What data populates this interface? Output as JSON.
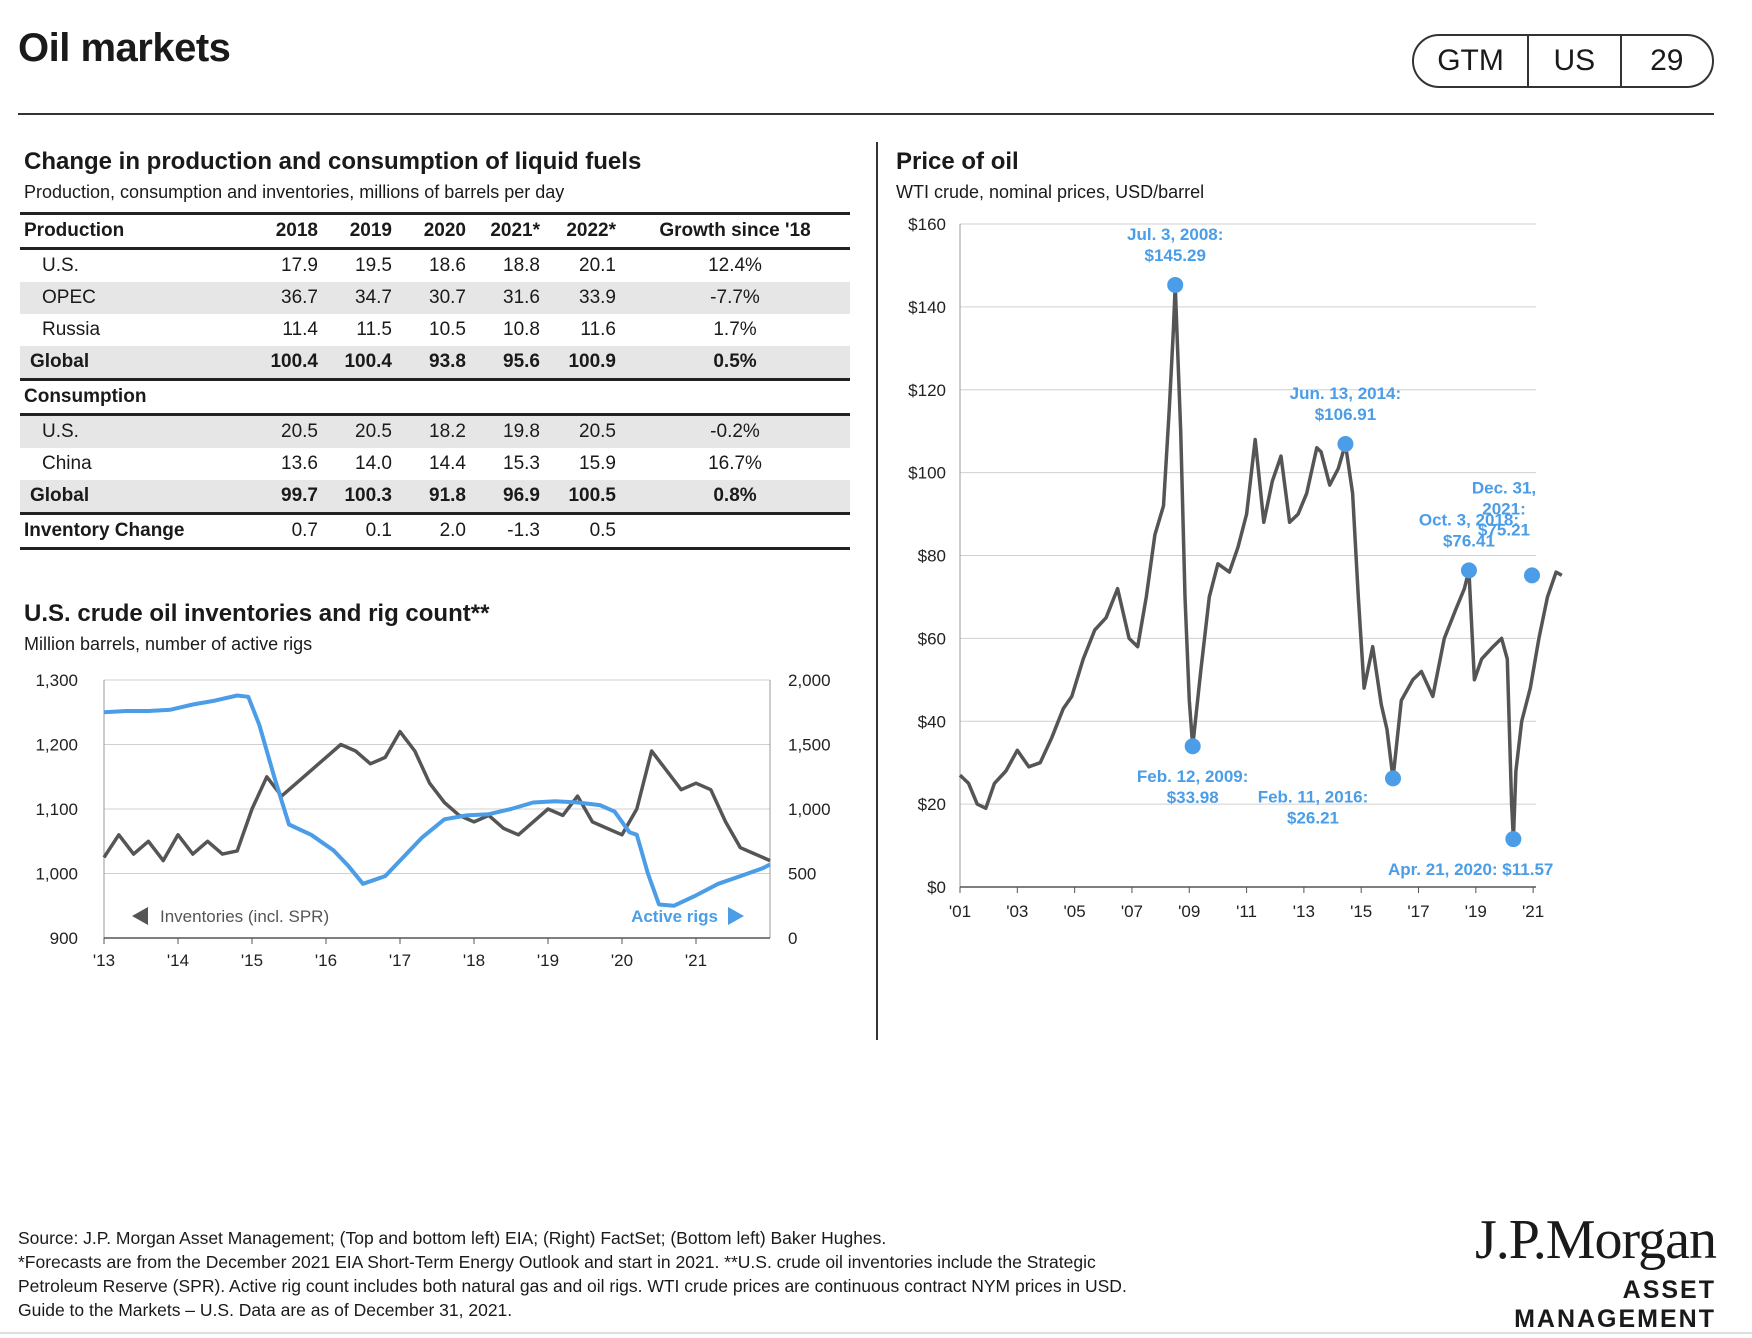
{
  "header": {
    "title": "Oil markets",
    "badge": [
      "GTM",
      "US",
      "29"
    ]
  },
  "fuel_table": {
    "title": "Change in production and consumption of liquid fuels",
    "subtitle": "Production, consumption and inventories, millions of barrels per day",
    "columns": [
      "Production",
      "2018",
      "2019",
      "2020",
      "2021*",
      "2022*",
      "Growth since '18"
    ],
    "production_rows": [
      [
        "U.S.",
        "17.9",
        "19.5",
        "18.6",
        "18.8",
        "20.1",
        "12.4%"
      ],
      [
        "OPEC",
        "36.7",
        "34.7",
        "30.7",
        "31.6",
        "33.9",
        "-7.7%"
      ],
      [
        "Russia",
        "11.4",
        "11.5",
        "10.5",
        "10.8",
        "11.6",
        "1.7%"
      ]
    ],
    "production_total": [
      "Global",
      "100.4",
      "100.4",
      "93.8",
      "95.6",
      "100.9",
      "0.5%"
    ],
    "consumption_label": "Consumption",
    "consumption_rows": [
      [
        "U.S.",
        "20.5",
        "20.5",
        "18.2",
        "19.8",
        "20.5",
        "-0.2%"
      ],
      [
        "China",
        "13.6",
        "14.0",
        "14.4",
        "15.3",
        "15.9",
        "16.7%"
      ]
    ],
    "consumption_total": [
      "Global",
      "99.7",
      "100.3",
      "91.8",
      "96.9",
      "100.5",
      "0.8%"
    ],
    "inventory_row": [
      "Inventory Change",
      "0.7",
      "0.1",
      "2.0",
      "-1.3",
      "0.5",
      ""
    ]
  },
  "chart_data": [
    {
      "type": "line",
      "title": "U.S. crude oil inventories and rig count**",
      "subtitle": "Million barrels, number of active rigs",
      "x_ticks": [
        "'13",
        "'14",
        "'15",
        "'16",
        "'17",
        "'18",
        "'19",
        "'20",
        "'21"
      ],
      "xlim": [
        2013.0,
        2022.0
      ],
      "y_left_ticks": [
        "900",
        "1,000",
        "1,100",
        "1,200",
        "1,300"
      ],
      "ylim_left": [
        900,
        1300
      ],
      "y_right_ticks": [
        "0",
        "500",
        "1,000",
        "1,500",
        "2,000"
      ],
      "ylim_right": [
        0,
        2000
      ],
      "legend": {
        "left": "Inventories (incl. SPR)",
        "right": "Active rigs"
      },
      "series": [
        {
          "name": "Inventories (incl. SPR)",
          "axis": "left",
          "color": "#555555",
          "x": [
            2013.0,
            2013.2,
            2013.4,
            2013.6,
            2013.8,
            2014.0,
            2014.2,
            2014.4,
            2014.6,
            2014.8,
            2015.0,
            2015.2,
            2015.4,
            2015.6,
            2015.8,
            2016.0,
            2016.2,
            2016.4,
            2016.6,
            2016.8,
            2017.0,
            2017.2,
            2017.4,
            2017.6,
            2017.8,
            2018.0,
            2018.2,
            2018.4,
            2018.6,
            2018.8,
            2019.0,
            2019.2,
            2019.4,
            2019.6,
            2019.8,
            2020.0,
            2020.2,
            2020.4,
            2020.6,
            2020.8,
            2021.0,
            2021.2,
            2021.4,
            2021.6,
            2021.8,
            2022.0
          ],
          "values": [
            1025,
            1060,
            1030,
            1050,
            1020,
            1060,
            1030,
            1050,
            1030,
            1035,
            1100,
            1150,
            1120,
            1140,
            1160,
            1180,
            1200,
            1190,
            1170,
            1180,
            1220,
            1190,
            1140,
            1110,
            1090,
            1080,
            1090,
            1070,
            1060,
            1080,
            1100,
            1090,
            1120,
            1080,
            1070,
            1060,
            1100,
            1190,
            1160,
            1130,
            1140,
            1130,
            1080,
            1040,
            1030,
            1020
          ]
        },
        {
          "name": "Active rigs",
          "axis": "right",
          "color": "#4a9de6",
          "x": [
            2013.0,
            2013.3,
            2013.6,
            2013.9,
            2014.2,
            2014.5,
            2014.8,
            2014.95,
            2015.1,
            2015.3,
            2015.5,
            2015.8,
            2016.1,
            2016.3,
            2016.5,
            2016.8,
            2017.0,
            2017.3,
            2017.6,
            2017.9,
            2018.2,
            2018.5,
            2018.8,
            2019.1,
            2019.4,
            2019.7,
            2019.9,
            2020.1,
            2020.2,
            2020.35,
            2020.5,
            2020.7,
            2021.0,
            2021.3,
            2021.6,
            2021.9,
            2022.0
          ],
          "values": [
            1750,
            1760,
            1760,
            1770,
            1810,
            1840,
            1880,
            1870,
            1650,
            1250,
            880,
            800,
            680,
            560,
            420,
            480,
            600,
            780,
            920,
            950,
            960,
            1000,
            1050,
            1060,
            1050,
            1030,
            980,
            820,
            800,
            500,
            260,
            250,
            330,
            420,
            480,
            540,
            570
          ]
        }
      ]
    },
    {
      "type": "line",
      "title": "Price of oil",
      "subtitle": "WTI crude, nominal prices, USD/barrel",
      "x_ticks": [
        "'01",
        "'03",
        "'05",
        "'07",
        "'09",
        "'11",
        "'13",
        "'15",
        "'17",
        "'19",
        "'21"
      ],
      "xlim": [
        2001.0,
        2021.1
      ],
      "y_ticks": [
        "$0",
        "$20",
        "$40",
        "$60",
        "$80",
        "$100",
        "$120",
        "$140",
        "$160"
      ],
      "ylim": [
        0,
        160
      ],
      "series": [
        {
          "name": "WTI crude",
          "color": "#555555",
          "x": [
            2001.0,
            2001.3,
            2001.6,
            2001.9,
            2002.2,
            2002.6,
            2003.0,
            2003.4,
            2003.8,
            2004.2,
            2004.6,
            2004.9,
            2005.3,
            2005.7,
            2006.1,
            2006.5,
            2006.9,
            2007.2,
            2007.5,
            2007.8,
            2008.1,
            2008.3,
            2008.45,
            2008.51,
            2008.7,
            2008.85,
            2009.0,
            2009.12,
            2009.4,
            2009.7,
            2010.0,
            2010.4,
            2010.7,
            2011.0,
            2011.3,
            2011.6,
            2011.9,
            2012.2,
            2012.5,
            2012.8,
            2013.1,
            2013.45,
            2013.6,
            2013.9,
            2014.2,
            2014.45,
            2014.7,
            2014.9,
            2015.1,
            2015.4,
            2015.7,
            2015.9,
            2016.11,
            2016.4,
            2016.8,
            2017.1,
            2017.5,
            2017.9,
            2018.3,
            2018.6,
            2018.76,
            2018.95,
            2019.2,
            2019.6,
            2019.9,
            2020.1,
            2020.25,
            2020.31,
            2020.4,
            2020.6,
            2020.9,
            2021.2,
            2021.5,
            2021.8,
            2022.0
          ],
          "values": [
            27,
            25,
            20,
            19,
            25,
            28,
            33,
            29,
            30,
            36,
            43,
            46,
            55,
            62,
            65,
            72,
            60,
            58,
            70,
            85,
            92,
            115,
            135,
            145.29,
            110,
            70,
            45,
            33.98,
            52,
            70,
            78,
            76,
            82,
            90,
            108,
            88,
            98,
            104,
            88,
            90,
            95,
            106,
            105,
            97,
            101,
            106.91,
            95,
            70,
            48,
            58,
            44,
            38,
            26.21,
            45,
            50,
            52,
            46,
            60,
            67,
            72,
            76.41,
            50,
            55,
            58,
            60,
            55,
            20,
            11.57,
            28,
            40,
            48,
            60,
            70,
            76,
            75.21
          ]
        }
      ],
      "annotations": [
        {
          "x": 2008.51,
          "y": 145.29,
          "lines": [
            "Jul. 3, 2008:",
            "$145.29"
          ],
          "pos": "above"
        },
        {
          "x": 2009.12,
          "y": 33.98,
          "lines": [
            "Feb. 12, 2009:",
            "$33.98"
          ],
          "pos": "below"
        },
        {
          "x": 2014.45,
          "y": 106.91,
          "lines": [
            "Jun. 13, 2014:",
            "$106.91"
          ],
          "pos": "above"
        },
        {
          "x": 2016.11,
          "y": 26.21,
          "lines": [
            "Feb. 11, 2016:",
            "$26.21"
          ],
          "pos": "below-left"
        },
        {
          "x": 2018.76,
          "y": 76.41,
          "lines": [
            "Oct. 3, 2018:",
            "$76.41"
          ],
          "pos": "above"
        },
        {
          "x": 2020.31,
          "y": 11.57,
          "lines": [
            "Apr. 21, 2020: $11.57"
          ],
          "pos": "below"
        },
        {
          "x": 2021.99,
          "y": 75.21,
          "lines": [
            "Dec. 31,",
            "2021:",
            "$75.21"
          ],
          "pos": "above-left"
        }
      ]
    }
  ],
  "footer": {
    "lines": [
      "Source: J.P. Morgan Asset Management; (Top and bottom left) EIA; (Right) FactSet; (Bottom left) Baker Hughes.",
      "*Forecasts are from the December 2021 EIA Short-Term Energy Outlook and start in 2021. **U.S. crude oil inventories include the Strategic",
      "Petroleum Reserve (SPR). Active rig count includes both natural gas and oil rigs. WTI crude prices are continuous contract NYM prices in USD.",
      "Guide to the Markets – U.S. Data are as of December 31, 2021."
    ],
    "logo_name": "J.P.Morgan",
    "logo_sub": "ASSET MANAGEMENT"
  }
}
